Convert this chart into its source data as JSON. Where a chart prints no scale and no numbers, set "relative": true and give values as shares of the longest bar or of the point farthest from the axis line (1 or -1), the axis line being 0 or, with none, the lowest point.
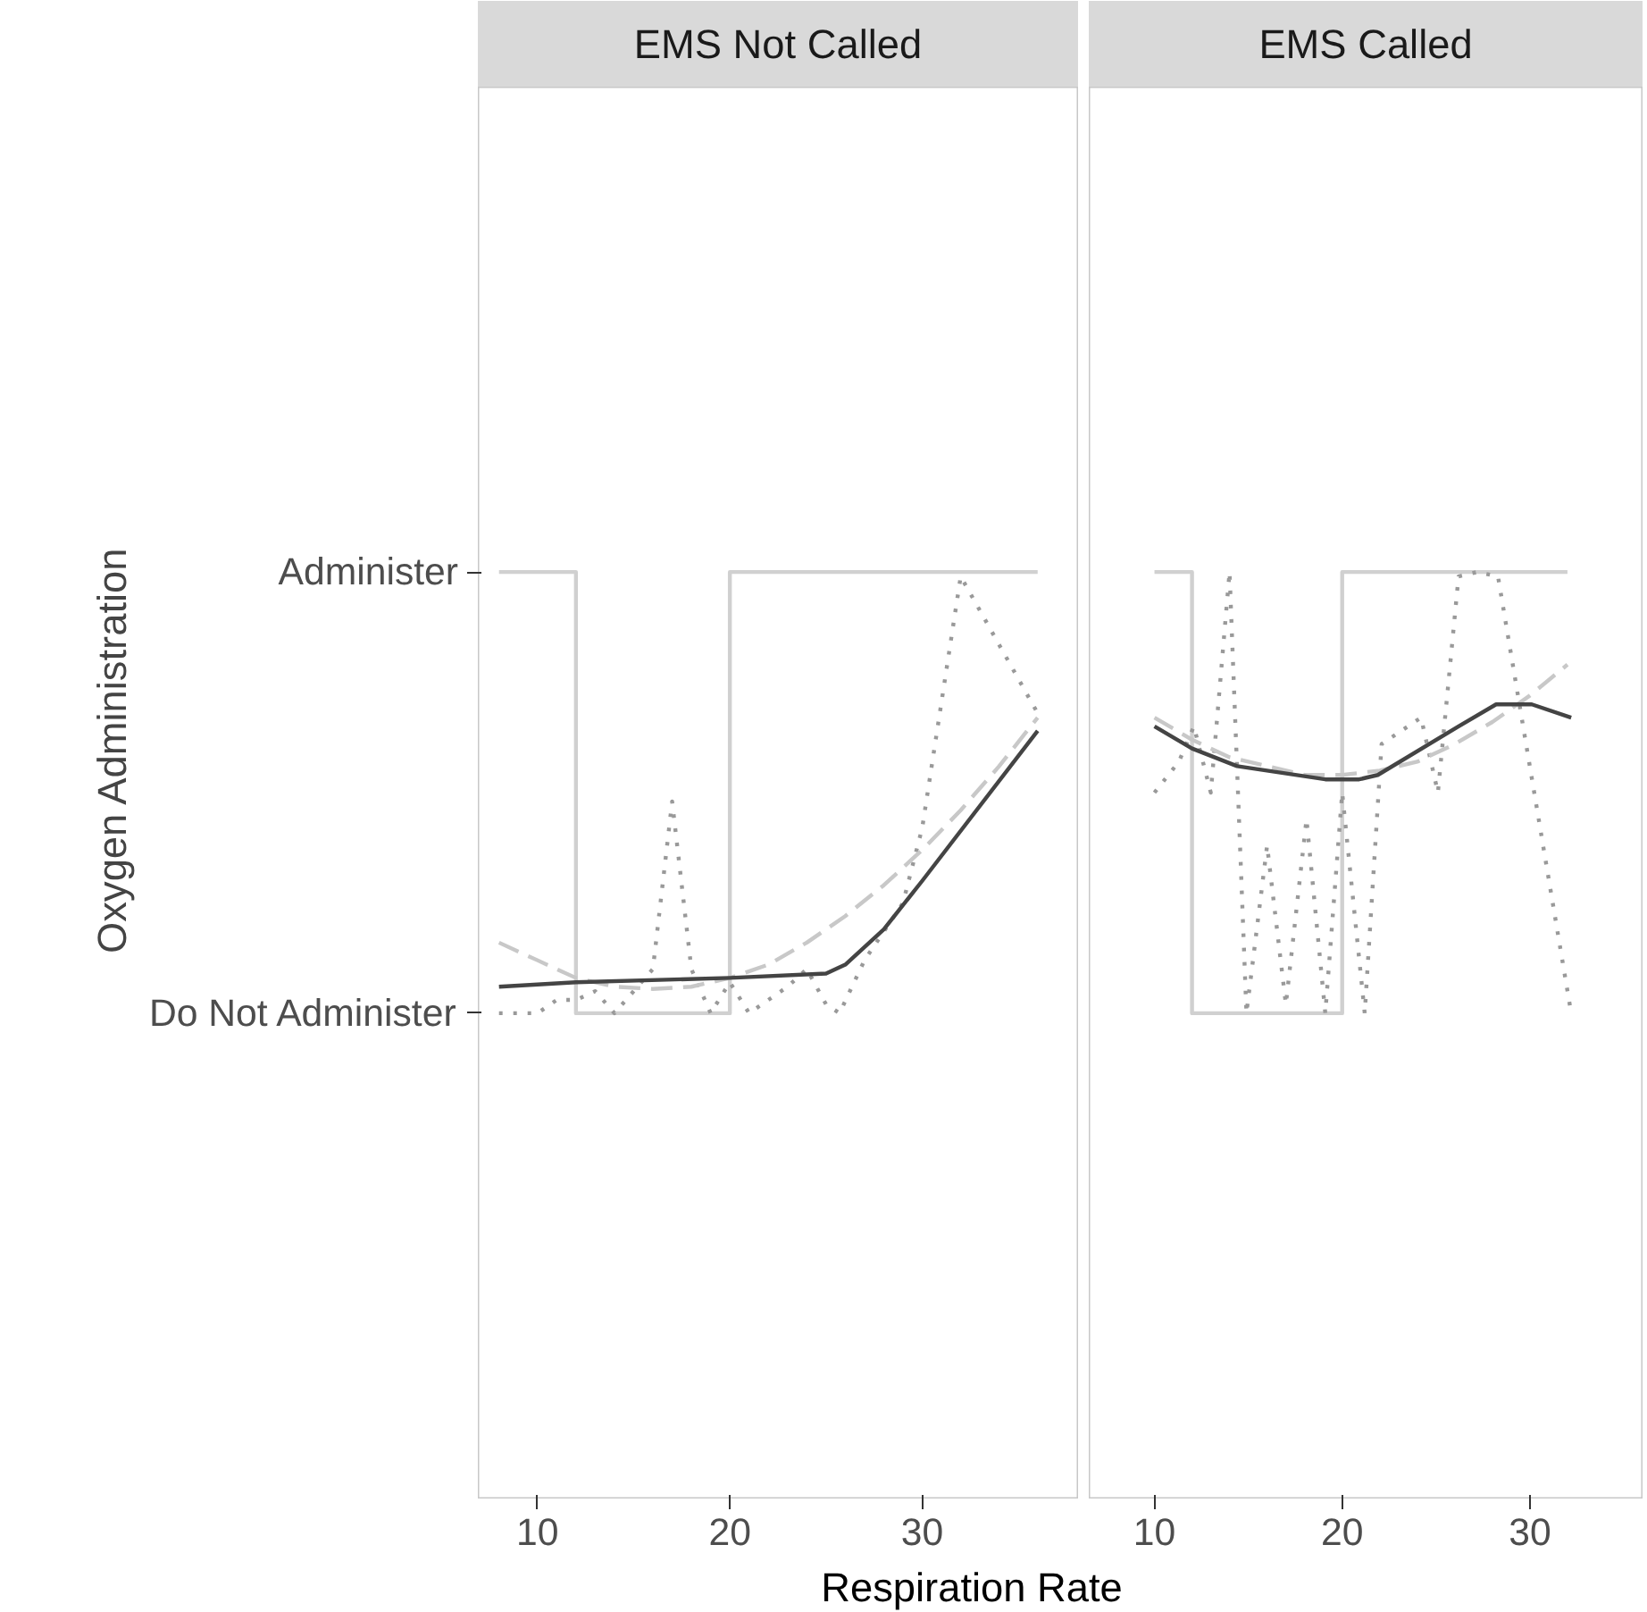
{
  "chart_data": [
    {
      "type": "line",
      "title": "EMS Not Called",
      "ylabel": "Oxygen Administration",
      "xlabel": "Respiration Rate",
      "xlim": [
        6.9,
        38.1
      ],
      "xticks": [
        10,
        20,
        30
      ],
      "relative": true,
      "y_categories": [
        "Administer",
        "Do Not Administer"
      ],
      "grid": false,
      "series": [
        {
          "color": "#d0d0d0",
          "line_style": "solid",
          "x": [
            8,
            12,
            12,
            20,
            20,
            36
          ],
          "values": [
            1,
            1,
            0,
            0,
            1,
            1
          ]
        },
        {
          "color": "#999999",
          "line_style": "dotted",
          "x": [
            8,
            10,
            11,
            12,
            13,
            14,
            15,
            16,
            17,
            18,
            19,
            20,
            21,
            22,
            23,
            24,
            25,
            25.7,
            27,
            29,
            30,
            32,
            36
          ],
          "values": [
            0,
            0,
            0.03,
            0.03,
            0.05,
            0,
            0.05,
            0.1,
            0.48,
            0.1,
            0,
            0.07,
            0,
            0.03,
            0.06,
            0.1,
            0.02,
            0,
            0.12,
            0.25,
            0.42,
            0.99,
            0.68
          ]
        },
        {
          "color": "#c8c8c8",
          "line_style": "dashed",
          "x": [
            8,
            10,
            12,
            14,
            16,
            18,
            20,
            22,
            24,
            26,
            28,
            30,
            32,
            34,
            36
          ],
          "values": [
            0.16,
            0.12,
            0.08,
            0.06,
            0.055,
            0.06,
            0.08,
            0.11,
            0.16,
            0.22,
            0.29,
            0.37,
            0.46,
            0.56,
            0.67
          ]
        },
        {
          "color": "#444444",
          "line_style": "solid",
          "x": [
            8,
            12,
            20,
            25,
            26,
            28,
            30,
            36
          ],
          "values": [
            0.06,
            0.07,
            0.08,
            0.09,
            0.11,
            0.19,
            0.3,
            0.64
          ]
        }
      ]
    },
    {
      "type": "line",
      "title": "EMS Called",
      "tick_labels": "x",
      "xlim": [
        6.5,
        36.0
      ],
      "xticks": [
        10,
        20,
        30
      ],
      "relative": true,
      "grid": false,
      "series": [
        {
          "color": "#d0d0d0",
          "line_style": "solid",
          "x": [
            10,
            12,
            12,
            20,
            20,
            32
          ],
          "values": [
            1,
            1,
            0,
            0,
            1,
            1
          ]
        },
        {
          "color": "#999999",
          "line_style": "dotted",
          "x": [
            10,
            11.3,
            12.1,
            13,
            14,
            14.9,
            16,
            17,
            18.1,
            19.1,
            20,
            21.2,
            22.1,
            24.2,
            25.1,
            26.2,
            27.2,
            28.3,
            32.2
          ],
          "values": [
            0.5,
            0.57,
            0.65,
            0.5,
            1,
            0,
            0.38,
            0.02,
            0.44,
            0,
            0.5,
            0,
            0.61,
            0.67,
            0.5,
            0.99,
            1,
            0.99,
            0
          ]
        },
        {
          "color": "#c8c8c8",
          "line_style": "dashed",
          "x": [
            10,
            12,
            14,
            16,
            18,
            20,
            22,
            24,
            26,
            28,
            30,
            32
          ],
          "values": [
            0.67,
            0.62,
            0.58,
            0.56,
            0.54,
            0.54,
            0.55,
            0.57,
            0.61,
            0.66,
            0.72,
            0.79
          ]
        },
        {
          "color": "#444444",
          "line_style": "solid",
          "x": [
            10,
            12,
            14.4,
            19.1,
            20.9,
            21.9,
            26.2,
            28.2,
            30.1,
            32.2
          ],
          "values": [
            0.65,
            0.6,
            0.56,
            0.53,
            0.53,
            0.54,
            0.65,
            0.7,
            0.7,
            0.67
          ]
        }
      ]
    }
  ]
}
